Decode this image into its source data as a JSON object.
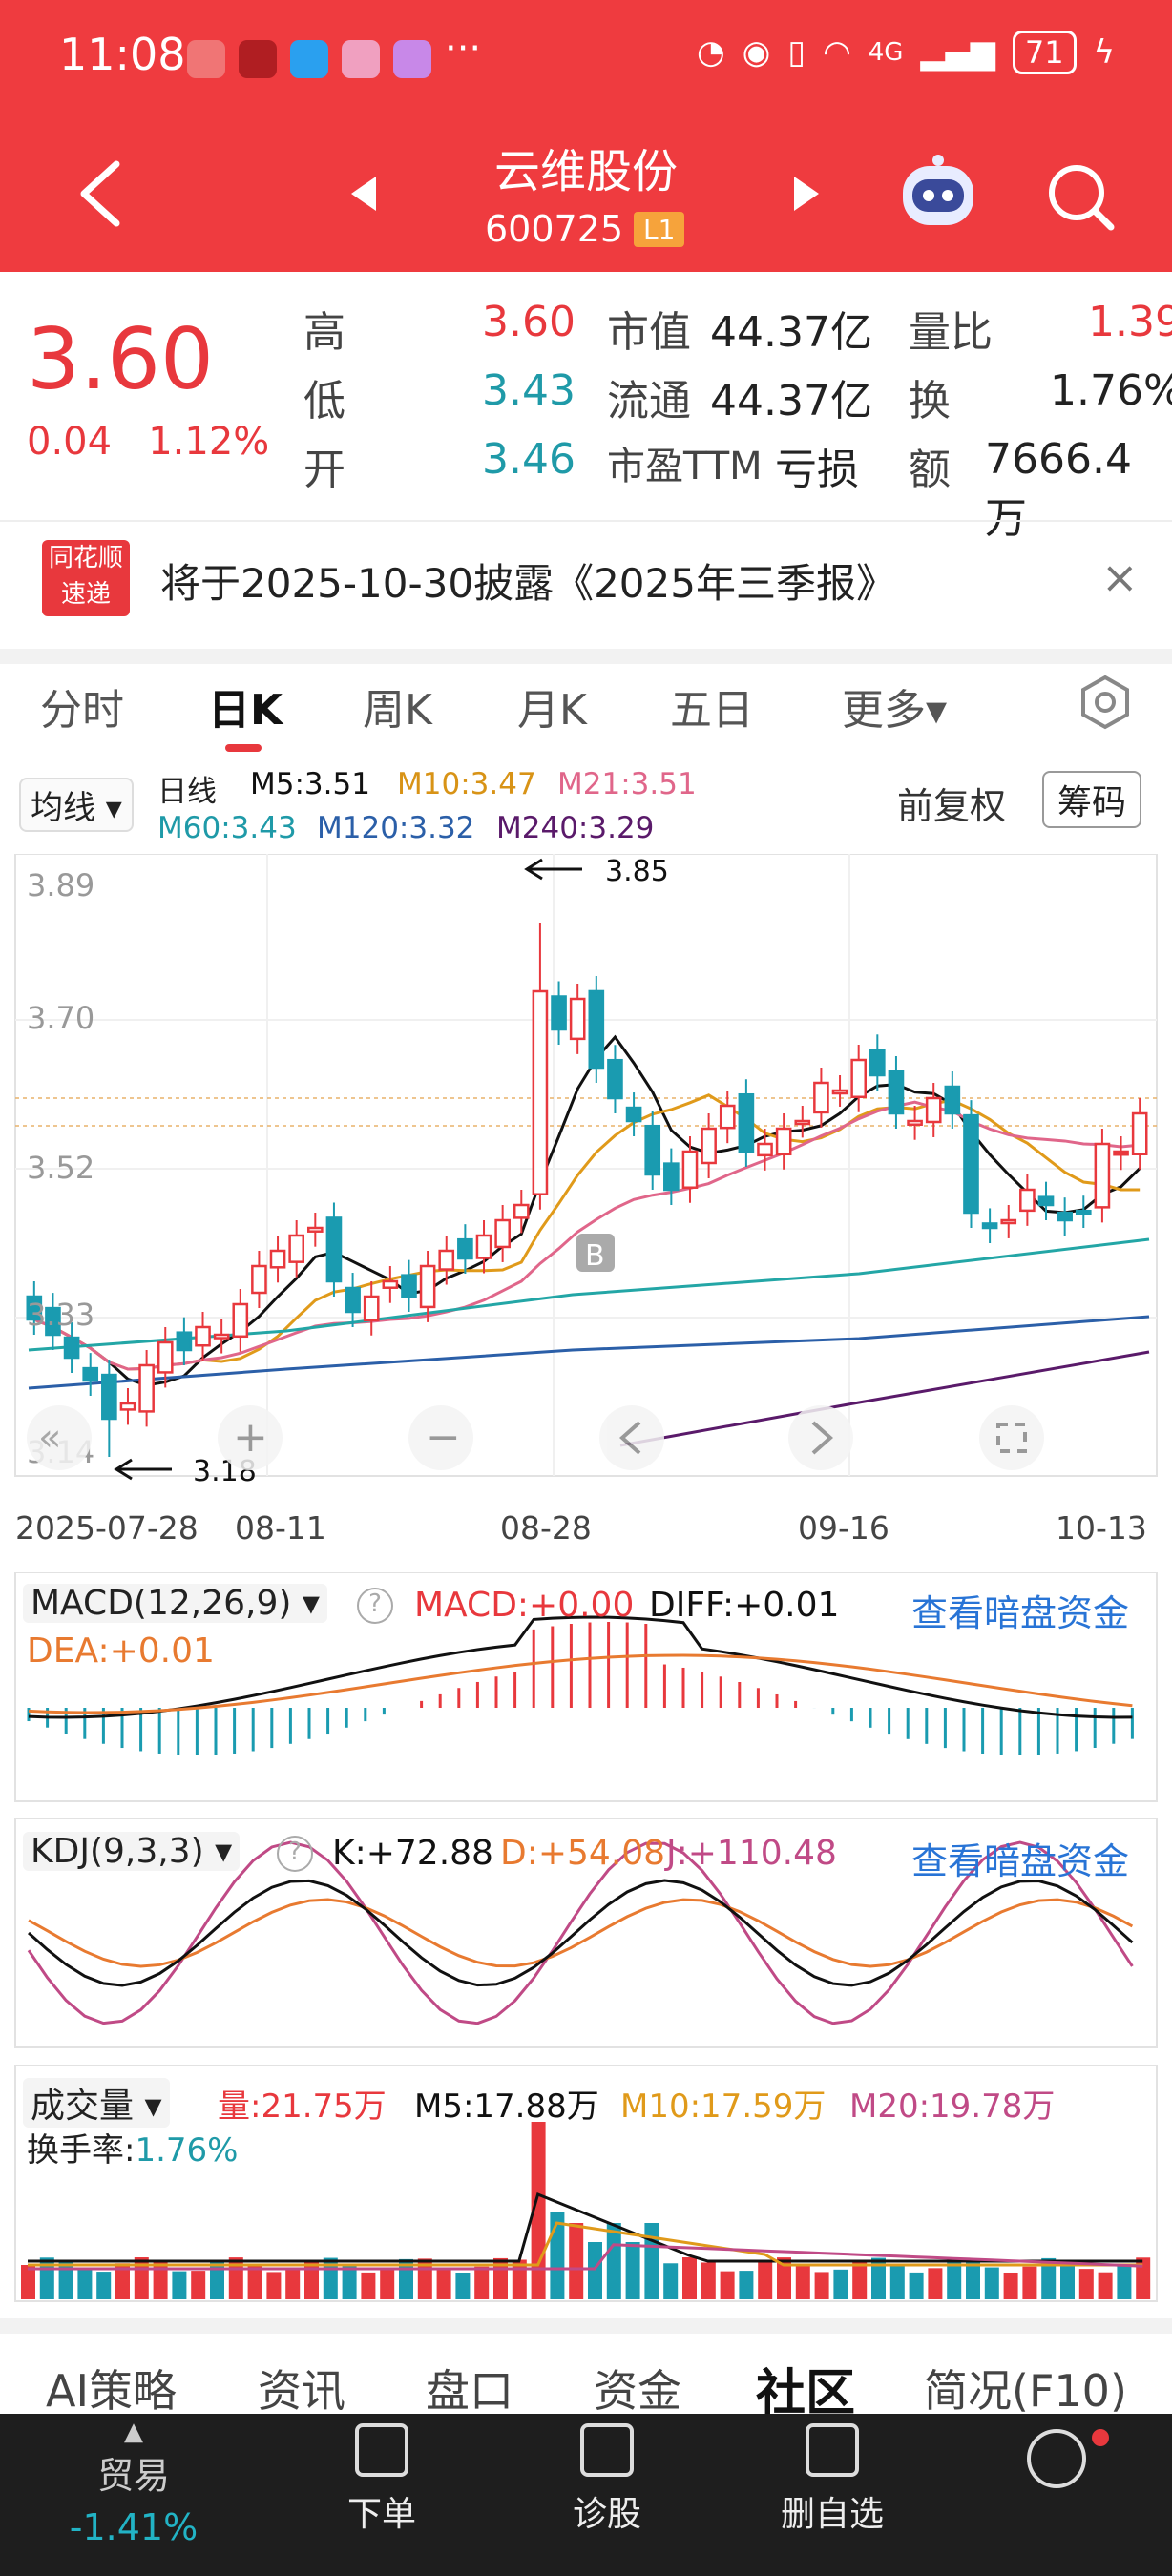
{
  "status_bar": {
    "time": "11:08",
    "dots": "···",
    "network": "4G",
    "battery": "71"
  },
  "header": {
    "stock_name": "云维股份",
    "stock_code": "600725",
    "level": "L1"
  },
  "quote": {
    "price": "3.60",
    "change": "0.04",
    "change_pct": "1.12%",
    "high_label": "高",
    "high": "3.60",
    "low_label": "低",
    "low": "3.43",
    "open_label": "开",
    "open": "3.46",
    "mktcap_label": "市值",
    "mktcap": "44.37亿",
    "float_label": "流通",
    "float": "44.37亿",
    "pe_label": "市盈TTM",
    "pe": "亏损",
    "vr_label": "量比",
    "vr": "1.39",
    "turn_label": "换",
    "turn": "1.76%",
    "amount_label": "额",
    "amount": "7666.4万"
  },
  "notice": {
    "badge_top": "同花顺",
    "badge_bottom": "速递",
    "text": "将于2025-10-30披露《2025年三季报》",
    "close": "×"
  },
  "period_tabs": [
    "分时",
    "日K",
    "周K",
    "月K",
    "五日",
    "更多▾"
  ],
  "ma_legend": {
    "pill": "均线 ▾",
    "line": "日线",
    "m5": "M5:3.51",
    "m10": "M10:3.47",
    "m21": "M21:3.51",
    "m60": "M60:3.43",
    "m120": "M120:3.32",
    "m240": "M240:3.29",
    "adjust": "前复权",
    "chips": "筹码"
  },
  "price_chart": {
    "y_ticks": [
      "3.89",
      "3.70",
      "3.52",
      "3.33",
      "3.14"
    ],
    "x_labels": [
      "2025-07-28",
      "08-11",
      "08-28",
      "09-16",
      "10-13"
    ],
    "high_mark": "3.85",
    "low_mark": "3.18",
    "b_marker": "B",
    "colors": {
      "up": "#e8383d",
      "down": "#1a9bb0",
      "m5": "#111111",
      "m10": "#e09a1a",
      "m21": "#e0668a",
      "m60": "#23a6a6",
      "m120": "#2b5fa8",
      "m240": "#5a1a6a"
    }
  },
  "macd": {
    "title": "MACD(12,26,9)",
    "macd": "MACD:+0.00",
    "diff": "DIFF:+0.01",
    "dea": "DEA:+0.01",
    "link": "查看暗盘资金"
  },
  "kdj": {
    "title": "KDJ(9,3,3)",
    "k": "K:+72.88",
    "d": "D:+54.08",
    "j": "J:+110.48",
    "link": "查看暗盘资金"
  },
  "volume": {
    "title": "成交量",
    "vol": "量:21.75万",
    "m5": "M5:17.88万",
    "m10": "M10:17.59万",
    "m20": "M20:19.78万",
    "turnover_label": "换手率:",
    "turnover": "1.76%"
  },
  "bottom_tabs": [
    "AI策略",
    "资讯",
    "盘口",
    "资金",
    "社区",
    "简况(F10)"
  ],
  "bottom_bar": {
    "trade": "贸易",
    "trade_pct": "-1.41%",
    "order": "下单",
    "diagnose": "诊股",
    "remove": "删自选"
  }
}
